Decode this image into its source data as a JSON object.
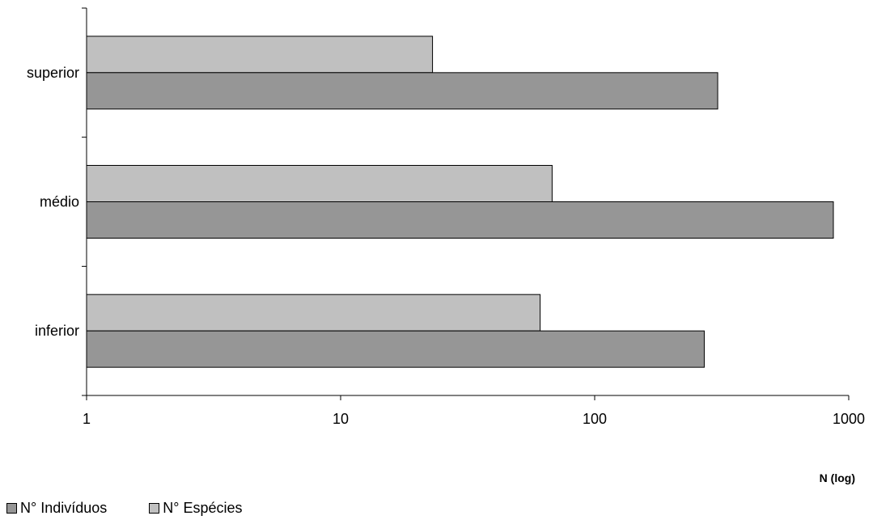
{
  "chart_data": {
    "type": "bar",
    "orientation": "horizontal",
    "xscale": "log",
    "xlim": [
      1,
      1000
    ],
    "xticks": [
      "1",
      "10",
      "100",
      "1000"
    ],
    "xlabel": "N (log)",
    "ylabel": "",
    "title": "",
    "grid": false,
    "legend_position": "bottom-left",
    "categories": [
      "superior",
      "médio",
      "inferior"
    ],
    "series": [
      {
        "name": "N° Espécies",
        "values": [
          23,
          68,
          61
        ],
        "color": "#c0c0c0"
      },
      {
        "name": "N° Indivíduos",
        "values": [
          305,
          870,
          270
        ],
        "color": "#969696"
      }
    ]
  }
}
